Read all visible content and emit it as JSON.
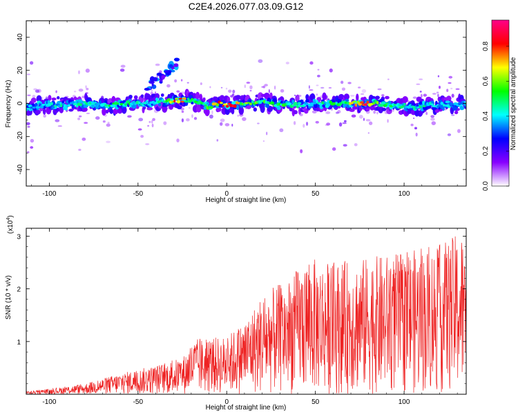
{
  "figure": {
    "title": "C2E4.2026.077.03.09.G12"
  },
  "chart_data": [
    {
      "type": "heatmap",
      "xlabel": "Height of straight line (km)",
      "ylabel": "Frequency (Hz)",
      "xlim": [
        -113,
        135
      ],
      "ylim": [
        -50,
        50
      ],
      "xticks": [
        -100,
        -50,
        0,
        50,
        100
      ],
      "yticks": [
        -40,
        -20,
        0,
        20,
        40
      ],
      "grid": false,
      "colorbar": {
        "label": "Normalized spectral amplitude",
        "range": [
          0,
          0.95
        ],
        "ticks": [
          0.0,
          0.2,
          0.4,
          0.6,
          0.8
        ],
        "colormap": [
          "#ffffff",
          "#8800ff",
          "#0000ff",
          "#00ffff",
          "#00ff00",
          "#ffff00",
          "#ff0000",
          "#ff0088"
        ]
      },
      "ridge": [
        {
          "x": -113,
          "y": -2,
          "amp": 0.35
        },
        {
          "x": -100,
          "y": -1,
          "amp": 0.4
        },
        {
          "x": -90,
          "y": -1,
          "amp": 0.45
        },
        {
          "x": -80,
          "y": 0,
          "amp": 0.45
        },
        {
          "x": -70,
          "y": -1,
          "amp": 0.4
        },
        {
          "x": -62,
          "y": -1,
          "amp": 0.55
        },
        {
          "x": -55,
          "y": 0,
          "amp": 0.5
        },
        {
          "x": -45,
          "y": 0,
          "amp": 0.45
        },
        {
          "x": -35,
          "y": 1,
          "amp": 0.5
        },
        {
          "x": -28,
          "y": 2,
          "amp": 0.8
        },
        {
          "x": -20,
          "y": 2,
          "amp": 0.55
        },
        {
          "x": -10,
          "y": -2,
          "amp": 0.6
        },
        {
          "x": -5,
          "y": 0,
          "amp": 0.75
        },
        {
          "x": 2,
          "y": -1,
          "amp": 0.85
        },
        {
          "x": 10,
          "y": 0,
          "amp": 0.6
        },
        {
          "x": 20,
          "y": 1,
          "amp": 0.55
        },
        {
          "x": 30,
          "y": -1,
          "amp": 0.55
        },
        {
          "x": 40,
          "y": -1,
          "amp": 0.45
        },
        {
          "x": 50,
          "y": 0,
          "amp": 0.45
        },
        {
          "x": 60,
          "y": 0,
          "amp": 0.5
        },
        {
          "x": 70,
          "y": 0,
          "amp": 0.65
        },
        {
          "x": 77,
          "y": 0,
          "amp": 0.9
        },
        {
          "x": 85,
          "y": 0,
          "amp": 0.6
        },
        {
          "x": 95,
          "y": -1,
          "amp": 0.45
        },
        {
          "x": 105,
          "y": -2,
          "amp": 0.45
        },
        {
          "x": 115,
          "y": -1,
          "amp": 0.45
        },
        {
          "x": 125,
          "y": -1,
          "amp": 0.4
        },
        {
          "x": 135,
          "y": -1,
          "amp": 0.35
        }
      ],
      "secondary_branch": [
        {
          "x": -45,
          "y": 10,
          "amp": 0.3
        },
        {
          "x": -38,
          "y": 15,
          "amp": 0.3
        },
        {
          "x": -33,
          "y": 20,
          "amp": 0.35
        },
        {
          "x": -27,
          "y": 25,
          "amp": 0.35
        }
      ]
    },
    {
      "type": "line",
      "xlabel": "Height of straight line (km)",
      "ylabel": "SNR (10 * v/v)",
      "y_multiplier": "(x10",
      "y_multiplier_exp": "4",
      "xlim": [
        -113,
        135
      ],
      "ylim": [
        0,
        3.15
      ],
      "xticks": [
        -100,
        -50,
        0,
        50,
        100
      ],
      "yticks": [
        1,
        2,
        3
      ],
      "grid": false,
      "color": "#ee2222",
      "envelope": [
        {
          "x": -113,
          "y": 0.05
        },
        {
          "x": -100,
          "y": 0.1
        },
        {
          "x": -80,
          "y": 0.2
        },
        {
          "x": -60,
          "y": 0.4
        },
        {
          "x": -40,
          "y": 0.55
        },
        {
          "x": -25,
          "y": 0.7
        },
        {
          "x": -18,
          "y": 1.05
        },
        {
          "x": 0,
          "y": 1.1
        },
        {
          "x": 10,
          "y": 1.4
        },
        {
          "x": 20,
          "y": 1.9
        },
        {
          "x": 35,
          "y": 2.2
        },
        {
          "x": 45,
          "y": 2.6
        },
        {
          "x": 60,
          "y": 2.5
        },
        {
          "x": 80,
          "y": 2.6
        },
        {
          "x": 100,
          "y": 2.7
        },
        {
          "x": 120,
          "y": 2.85
        },
        {
          "x": 133,
          "y": 3.1
        },
        {
          "x": 135,
          "y": 2.2
        }
      ]
    }
  ]
}
